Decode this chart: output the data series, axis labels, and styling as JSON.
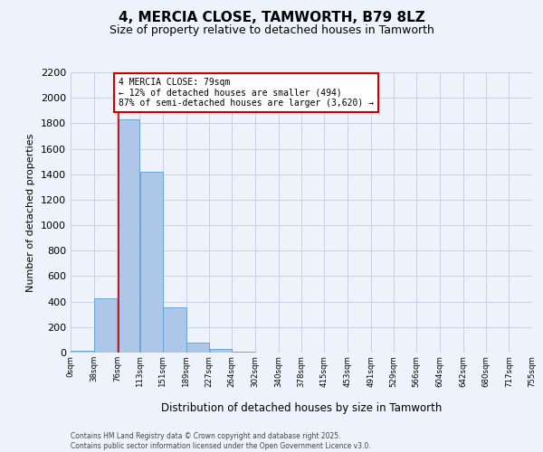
{
  "title": "4, MERCIA CLOSE, TAMWORTH, B79 8LZ",
  "subtitle": "Size of property relative to detached houses in Tamworth",
  "xlabel": "Distribution of detached houses by size in Tamworth",
  "ylabel": "Number of detached properties",
  "footer_line1": "Contains HM Land Registry data © Crown copyright and database right 2025.",
  "footer_line2": "Contains public sector information licensed under the Open Government Licence v3.0.",
  "annotation_title": "4 MERCIA CLOSE: 79sqm",
  "annotation_line1": "← 12% of detached houses are smaller (494)",
  "annotation_line2": "87% of semi-detached houses are larger (3,620) →",
  "property_size_sqm": 79,
  "bin_edges": [
    0,
    38,
    76,
    113,
    151,
    189,
    227,
    264,
    302,
    340,
    378,
    415,
    453,
    491,
    529,
    566,
    604,
    642,
    680,
    717,
    755
  ],
  "bin_labels": [
    "0sqm",
    "38sqm",
    "76sqm",
    "113sqm",
    "151sqm",
    "189sqm",
    "227sqm",
    "264sqm",
    "302sqm",
    "340sqm",
    "378sqm",
    "415sqm",
    "453sqm",
    "491sqm",
    "529sqm",
    "566sqm",
    "604sqm",
    "642sqm",
    "680sqm",
    "717sqm",
    "755sqm"
  ],
  "counts": [
    15,
    425,
    1830,
    1420,
    355,
    80,
    30,
    5,
    0,
    0,
    0,
    0,
    0,
    0,
    0,
    0,
    0,
    0,
    0,
    0
  ],
  "bar_color": "#aec6e8",
  "bar_edge_color": "#5a9fd4",
  "vline_color": "#cc0000",
  "annotation_box_color": "#cc0000",
  "background_color": "#eef2fb",
  "grid_color": "#c8d0e8",
  "ylim": [
    0,
    2200
  ],
  "yticks": [
    0,
    200,
    400,
    600,
    800,
    1000,
    1200,
    1400,
    1600,
    1800,
    2000,
    2200
  ]
}
